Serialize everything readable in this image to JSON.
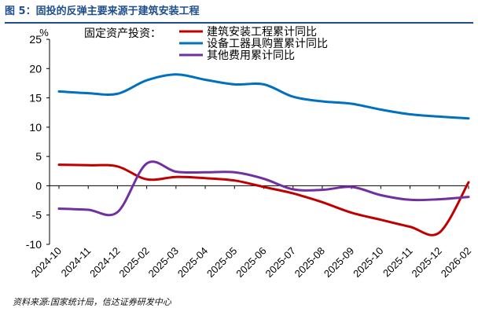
{
  "figure": {
    "title": "图 5：固投的反弹主要来源于建筑安装工程",
    "source": "资料来源:国家统计局，信达证券研发中心"
  },
  "chart_data": {
    "type": "line",
    "unit_label": "%",
    "legend_prefix": "固定资产投资：",
    "ylim": [
      -10,
      25
    ],
    "yticks": [
      -10,
      -5,
      0,
      5,
      10,
      15,
      20,
      25
    ],
    "categories": [
      "2024-10",
      "2024-11",
      "2024-12",
      "2025-02",
      "2025-03",
      "2025-04",
      "2025-05",
      "2025-06",
      "2025-07",
      "2025-08",
      "2025-09",
      "2025-10",
      "2025-11",
      "2025-12",
      "2026-02"
    ],
    "series": [
      {
        "name": "建筑安装工程累计同比",
        "color": "#c00000",
        "values": [
          3.6,
          3.5,
          3.3,
          1.1,
          1.5,
          1.3,
          0.9,
          -0.2,
          -1.3,
          -2.8,
          -4.6,
          -5.8,
          -7.0,
          -8.0,
          0.6
        ]
      },
      {
        "name": "设备工器具购置累计同比",
        "color": "#0070c0",
        "values": [
          16.1,
          15.8,
          15.7,
          18.0,
          19.0,
          18.1,
          17.3,
          17.3,
          15.2,
          14.4,
          14.0,
          13.0,
          12.2,
          11.8,
          11.5
        ]
      },
      {
        "name": "其他费用累计同比",
        "color": "#7030a0",
        "values": [
          -3.9,
          -4.1,
          -4.5,
          3.8,
          2.4,
          2.3,
          2.3,
          1.2,
          -0.6,
          -0.7,
          -0.2,
          -1.6,
          -2.4,
          -2.3,
          -1.9
        ]
      }
    ]
  }
}
